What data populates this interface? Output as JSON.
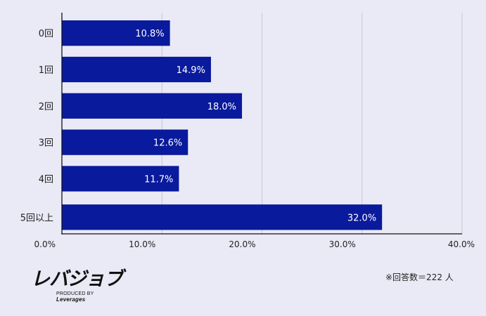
{
  "chart_data": {
    "type": "bar",
    "orientation": "horizontal",
    "categories": [
      "0回",
      "1回",
      "2回",
      "3回",
      "4回",
      "5回以上"
    ],
    "values": [
      10.8,
      14.9,
      18.0,
      12.6,
      11.7,
      32.0
    ],
    "value_labels": [
      "10.8%",
      "14.9%",
      "18.0%",
      "12.6%",
      "11.7%",
      "32.0%"
    ],
    "x_ticks": [
      "0.0%",
      "10.0%",
      "20.0%",
      "30.0%",
      "40.0%"
    ],
    "xlim": [
      0,
      40
    ],
    "grid": "vertical",
    "bar_color": "#0a1a9c"
  },
  "logo": {
    "main": "レバジョブ",
    "sub_prefix": "PRODUCED BY",
    "sub_brand": "Leverages"
  },
  "note": "※回答数＝222 人"
}
